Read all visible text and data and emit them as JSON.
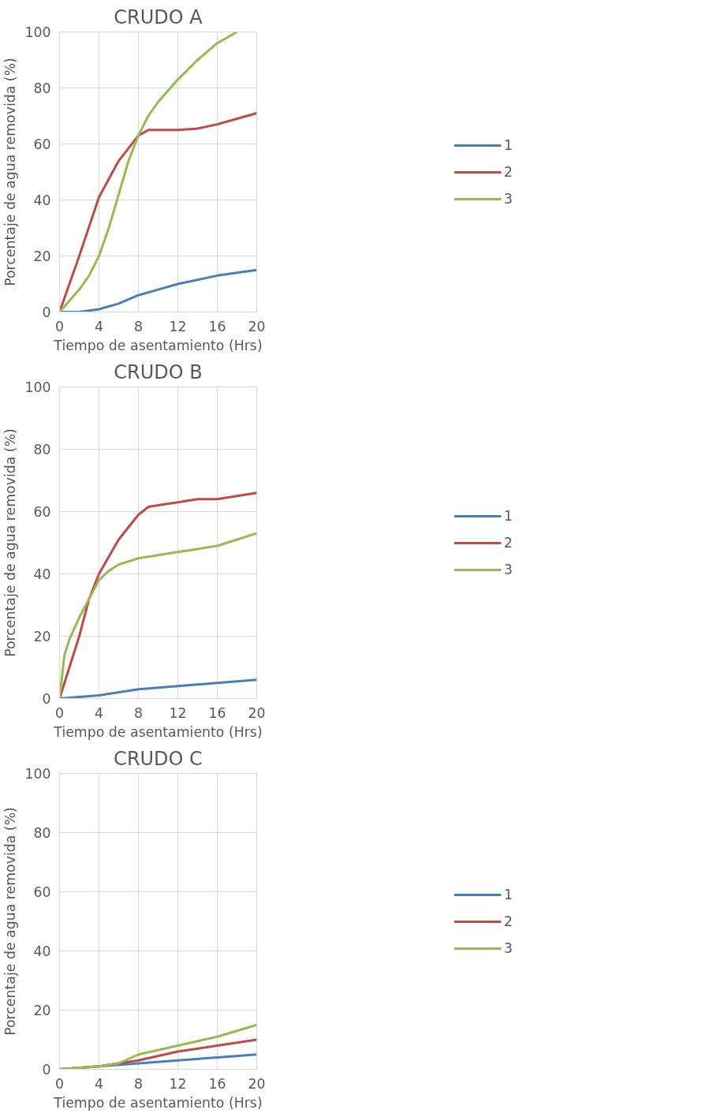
{
  "chart_data": [
    {
      "type": "line",
      "title": "CRUDO A",
      "xlabel": "Tiempo de asentamiento (Hrs)",
      "ylabel": "Porcentaje de agua removida (%)",
      "xlim": [
        0,
        20
      ],
      "xticks": [
        0,
        4,
        8,
        12,
        16,
        20
      ],
      "ylim": [
        0,
        100
      ],
      "yticks": [
        0,
        20,
        40,
        60,
        80,
        100
      ],
      "grid": true,
      "legend": "right",
      "series": [
        {
          "name": "1",
          "color": "#4a7ebb",
          "x": [
            0,
            2,
            4,
            6,
            8,
            10,
            12,
            14,
            16,
            18,
            20
          ],
          "values": [
            0,
            0,
            1,
            3,
            6,
            8,
            10,
            11.5,
            13,
            14,
            15
          ]
        },
        {
          "name": "2",
          "color": "#be4b48",
          "x": [
            0,
            2,
            4,
            6,
            8,
            9,
            10,
            12,
            14,
            16,
            18,
            20
          ],
          "values": [
            0,
            20,
            41,
            54,
            63,
            65,
            65,
            65,
            65.5,
            67,
            69,
            71
          ]
        },
        {
          "name": "3",
          "color": "#98b954",
          "x": [
            0,
            2,
            3,
            4,
            5,
            6,
            7,
            8,
            9,
            10,
            12,
            14,
            16,
            18
          ],
          "values": [
            0,
            8,
            13,
            20,
            30,
            42,
            54,
            63,
            70,
            75,
            83,
            90,
            96,
            100
          ]
        }
      ]
    },
    {
      "type": "line",
      "title": "CRUDO B",
      "xlabel": "Tiempo de asentamiento (Hrs)",
      "ylabel": "Porcentaje de agua removida (%)",
      "xlim": [
        0,
        20
      ],
      "xticks": [
        0,
        4,
        8,
        12,
        16,
        20
      ],
      "ylim": [
        0,
        100
      ],
      "yticks": [
        0,
        20,
        40,
        60,
        80,
        100
      ],
      "grid": true,
      "legend": "right",
      "series": [
        {
          "name": "1",
          "color": "#4a7ebb",
          "x": [
            0,
            4,
            8,
            12,
            16,
            20
          ],
          "values": [
            0,
            1,
            3,
            4,
            5,
            6
          ]
        },
        {
          "name": "2",
          "color": "#be4b48",
          "x": [
            0,
            2,
            3,
            4,
            6,
            8,
            9,
            10,
            12,
            14,
            16,
            18,
            20
          ],
          "values": [
            0,
            20,
            32,
            40,
            51,
            59,
            61.5,
            62,
            63,
            64,
            64,
            65,
            66
          ]
        },
        {
          "name": "3",
          "color": "#98b954",
          "x": [
            0,
            0.5,
            1,
            2,
            3,
            4,
            5,
            6,
            8,
            10,
            12,
            14,
            16,
            18,
            20
          ],
          "values": [
            0,
            14,
            19,
            26,
            32,
            38,
            41,
            43,
            45,
            46,
            47,
            48,
            49,
            51,
            53
          ]
        }
      ]
    },
    {
      "type": "line",
      "title": "CRUDO C",
      "xlabel": "Tiempo de asentamiento (Hrs)",
      "ylabel": "Porcentaje de agua removida (%)",
      "xlim": [
        0,
        20
      ],
      "xticks": [
        0,
        4,
        8,
        12,
        16,
        20
      ],
      "ylim": [
        0,
        100
      ],
      "yticks": [
        0,
        20,
        40,
        60,
        80,
        100
      ],
      "grid": true,
      "legend": "right",
      "series": [
        {
          "name": "1",
          "color": "#4a7ebb",
          "x": [
            0,
            4,
            8,
            12,
            16,
            20
          ],
          "values": [
            0,
            1,
            2,
            3,
            4,
            5
          ]
        },
        {
          "name": "2",
          "color": "#be4b48",
          "x": [
            0,
            4,
            6,
            8,
            12,
            16,
            20
          ],
          "values": [
            0,
            1,
            2,
            3,
            6,
            8,
            10
          ]
        },
        {
          "name": "3",
          "color": "#98b954",
          "x": [
            0,
            4,
            6,
            8,
            12,
            16,
            20
          ],
          "values": [
            0,
            1,
            2,
            5,
            8,
            11,
            15
          ]
        }
      ]
    }
  ]
}
